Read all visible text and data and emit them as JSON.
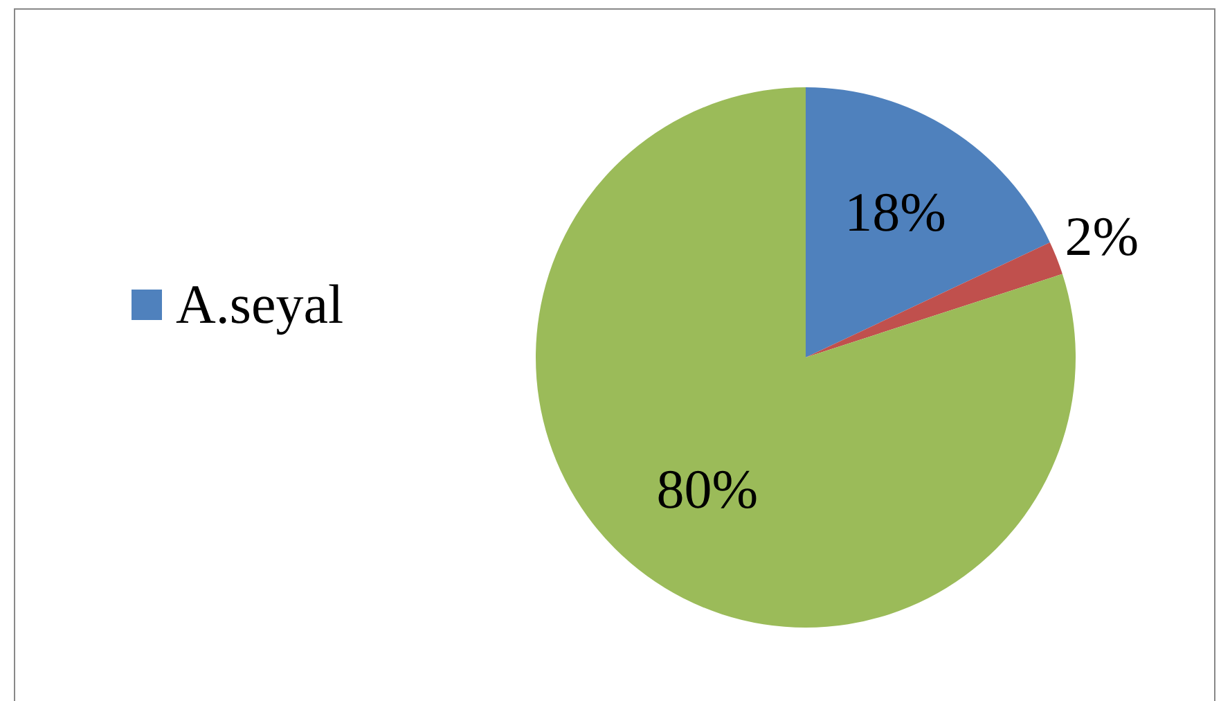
{
  "chart_data": {
    "type": "pie",
    "categories": [
      "A.seyal",
      null,
      null
    ],
    "values": [
      18,
      2,
      80
    ],
    "colors": [
      "#4f81bd",
      "#c0504d",
      "#9bbb59"
    ],
    "value_labels": [
      "18%",
      "2%",
      "80%"
    ],
    "legend": "left"
  }
}
